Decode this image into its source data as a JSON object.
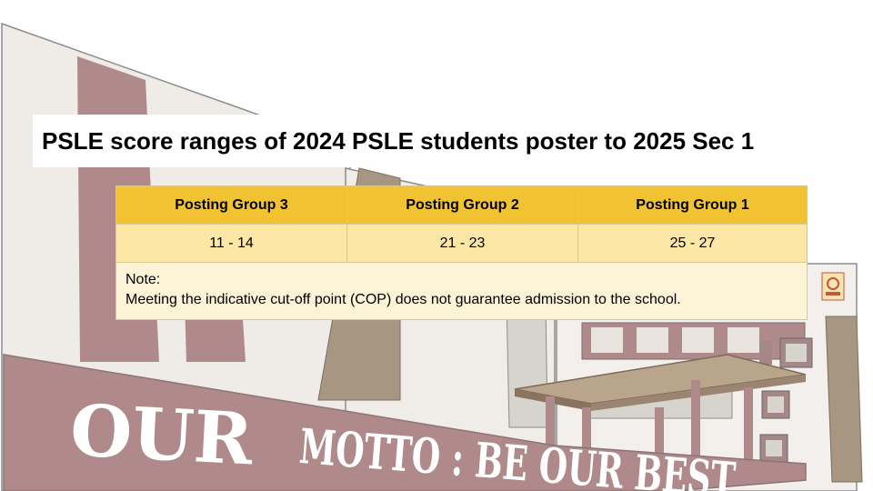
{
  "title": "PSLE score ranges of 2024 PSLE students poster to 2025 Sec 1",
  "table": {
    "headers": [
      "Posting Group 3",
      "Posting Group 2",
      "Posting Group 1"
    ],
    "values": [
      "11 - 14",
      "21 - 23",
      "25 - 27"
    ],
    "note_label": "Note:",
    "note_text": "Meeting the indicative cut-off point (COP) does not guarantee admission to the school."
  },
  "motto": {
    "part1": "OUR",
    "part2": "MOTTO : BE OUR BEST"
  },
  "colors": {
    "header_fill": "#f1c232",
    "value_fill": "#fde7a6",
    "note_fill": "#fdf3d7",
    "banner": "#b08a8b"
  }
}
